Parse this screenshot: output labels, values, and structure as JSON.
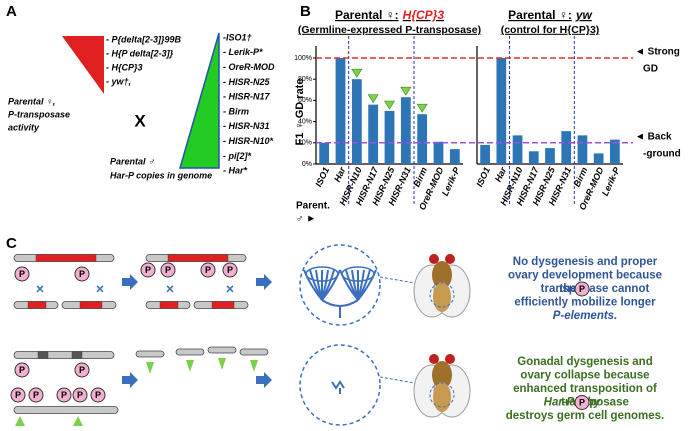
{
  "panel_a": {
    "label": "A",
    "female_strains": [
      "- P{delta[2-3]}99B",
      "- H{P delta[2-3]}",
      "- H{CP}3",
      "- yw†,"
    ],
    "female_caption": [
      "Parental ♀,",
      "P-transposase",
      "activity"
    ],
    "cross": "X",
    "male_strains": [
      "-ISO1†",
      "- Lerik-P*",
      "- OreR-MOD",
      "- HISR-N25",
      "- HISR-N17",
      "- Birm",
      "- HISR-N31",
      "- HISR-N10*",
      "- pi[2]*",
      "- Har*"
    ],
    "male_caption": [
      "Parental ♂",
      "Har-P copies in genome"
    ]
  },
  "panel_b": {
    "label": "B",
    "x_caption": [
      "Parent.",
      "♂ ►"
    ]
  },
  "chart_data": [
    {
      "type": "bar",
      "title": "Parental ♀:",
      "title_highlight": "H{CP}3",
      "title_highlight_color": "#e02020",
      "subtitle": "(Germline-expressed P-transposase)",
      "y_label": "F1 ♀ GD rate",
      "categories": [
        "ISO1",
        "Har",
        "HISR-N10",
        "HISR-N17",
        "HISR-N25",
        "HISR-N31",
        "Birm",
        "OreR-MOD",
        "Lerik-P"
      ],
      "values": [
        20,
        100,
        80,
        56,
        50,
        63,
        47,
        21,
        14
      ],
      "color": "#2e75b6",
      "highlighted": [
        false,
        false,
        true,
        true,
        true,
        true,
        true,
        false,
        false
      ],
      "highlight_color": "#7cd04a",
      "ylim": [
        0,
        100
      ],
      "yticks": [
        {
          "value": 0,
          "label": "0%"
        },
        {
          "value": 20,
          "label": "20%"
        },
        {
          "value": 40,
          "label": "40%"
        },
        {
          "value": 60,
          "label": "60%"
        },
        {
          "value": 80,
          "label": "80%"
        },
        {
          "value": 100,
          "label": "100%"
        }
      ]
    },
    {
      "type": "bar",
      "title": "Parental ♀:",
      "title_highlight": "yw",
      "title_highlight_color": "#000000",
      "subtitle": "(control for H{CP}3)",
      "categories": [
        "ISO1",
        "Har",
        "HISR-N10",
        "HISR-N17",
        "HISR-N25",
        "HISR-N31",
        "Birm",
        "OreR-MOD",
        "Lerik-P"
      ],
      "values": [
        18,
        100,
        27,
        12,
        15,
        31,
        27,
        10,
        23
      ],
      "color": "#2e75b6",
      "ylim": [
        0,
        100
      ],
      "reference_lines": [
        {
          "value": 100,
          "color": "#e03030",
          "label": [
            "◄ Strong",
            "GD"
          ]
        },
        {
          "value": 20,
          "color": "#a050e0",
          "label": [
            "◄ Back",
            "-ground"
          ]
        }
      ]
    }
  ],
  "panel_c": {
    "label": "C",
    "p_symbol": "P",
    "top_text": [
      "No dysgenesis and proper",
      "ovary development because",
      "the",
      "transposase cannot",
      "efficiently mobilize longer",
      "P-elements."
    ],
    "bottom_text": [
      "Gonadal dysgenesis and",
      "ovary collapse because",
      "enhanced transposition of",
      "Har-P’s by",
      "transposase",
      "destroys germ cell genomes."
    ]
  }
}
